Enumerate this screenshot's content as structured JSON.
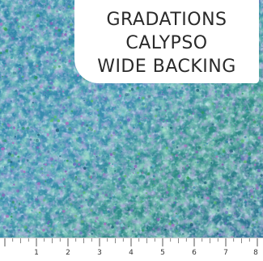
{
  "product": {
    "title_lines": [
      "GRADATIONS",
      "CALYPSO",
      "WIDE BACKING"
    ]
  },
  "fabric": {
    "palette": [
      "#2f7fa6",
      "#3aa0a8",
      "#5fb8c8",
      "#6a6fc0",
      "#8a5fb6",
      "#2e9a5e",
      "#5cbf6a",
      "#1f5f7a",
      "#b06cc0",
      "#7ec9d6"
    ]
  },
  "ruler": {
    "numbers": [
      "1",
      "2",
      "3",
      "4",
      "5",
      "6",
      "7",
      "8"
    ]
  }
}
